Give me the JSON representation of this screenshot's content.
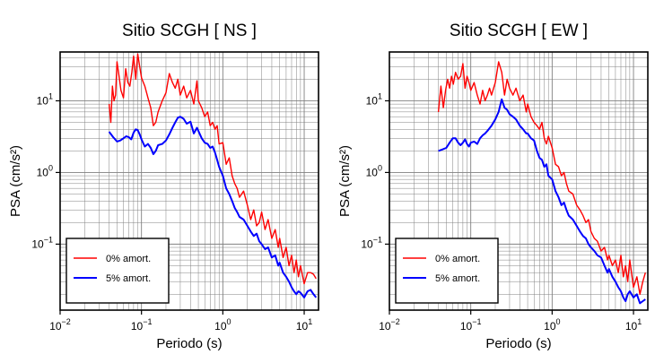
{
  "colors": {
    "series_0": "#ff0000",
    "series_5": "#0000ff",
    "grid": "#808080",
    "frame": "#000000"
  },
  "chart_data": [
    {
      "type": "line",
      "title": "Sitio SCGH [ NS ]",
      "xlabel": "Periodo (s)",
      "ylabel": "PSA (cm/s²)",
      "xscale": "log",
      "yscale": "log",
      "xlim": [
        0.01,
        15
      ],
      "ylim": [
        0.012,
        48
      ],
      "x_ticks": [
        {
          "v": 0.01,
          "b": "10",
          "e": "−2"
        },
        {
          "v": 0.1,
          "b": "10",
          "e": "−1"
        },
        {
          "v": 1,
          "b": "10",
          "e": "0"
        },
        {
          "v": 10,
          "b": "10",
          "e": "1"
        }
      ],
      "y_ticks": [
        {
          "v": 0.1,
          "b": "10",
          "e": "−1"
        },
        {
          "v": 1,
          "b": "10",
          "e": "0"
        },
        {
          "v": 10,
          "b": "10",
          "e": "1"
        }
      ],
      "grid": true,
      "legend_position": "bottom-left",
      "series": [
        {
          "name": "0% amort.",
          "color": "#ff0000",
          "x": [
            0.04,
            0.042,
            0.044,
            0.046,
            0.048,
            0.05,
            0.053,
            0.056,
            0.06,
            0.064,
            0.068,
            0.072,
            0.076,
            0.08,
            0.085,
            0.09,
            0.095,
            0.1,
            0.11,
            0.12,
            0.13,
            0.14,
            0.15,
            0.16,
            0.18,
            0.2,
            0.22,
            0.24,
            0.26,
            0.28,
            0.3,
            0.33,
            0.36,
            0.4,
            0.44,
            0.48,
            0.5,
            0.55,
            0.6,
            0.65,
            0.7,
            0.75,
            0.8,
            0.85,
            0.9,
            1.0,
            1.1,
            1.2,
            1.3,
            1.4,
            1.5,
            1.6,
            1.8,
            2.0,
            2.2,
            2.4,
            2.6,
            2.8,
            3.0,
            3.3,
            3.6,
            4.0,
            4.4,
            4.8,
            5.0,
            5.5,
            6.0,
            6.5,
            7.0,
            7.5,
            8.0,
            8.5,
            9.0,
            10,
            11,
            12,
            13,
            14
          ],
          "values": [
            9,
            5,
            16,
            10,
            12,
            35,
            22,
            14,
            11,
            28,
            18,
            16,
            25,
            42,
            20,
            45,
            30,
            21,
            16,
            11,
            8,
            4.5,
            5,
            7,
            10,
            13,
            24,
            18,
            15,
            20,
            12,
            16,
            11,
            14,
            9,
            19,
            10,
            8,
            6,
            7,
            4.5,
            5,
            4,
            4.5,
            2.5,
            2.6,
            1.3,
            1.6,
            0.9,
            0.7,
            0.6,
            0.45,
            0.55,
            0.35,
            0.22,
            0.3,
            0.18,
            0.2,
            0.28,
            0.16,
            0.22,
            0.12,
            0.16,
            0.09,
            0.12,
            0.065,
            0.09,
            0.05,
            0.07,
            0.04,
            0.06,
            0.035,
            0.05,
            0.028,
            0.04,
            0.04,
            0.038,
            0.033
          ]
        },
        {
          "name": "5% amort.",
          "color": "#0000ff",
          "x": [
            0.04,
            0.045,
            0.05,
            0.055,
            0.06,
            0.065,
            0.07,
            0.075,
            0.08,
            0.085,
            0.09,
            0.095,
            0.1,
            0.11,
            0.12,
            0.13,
            0.14,
            0.15,
            0.16,
            0.18,
            0.2,
            0.22,
            0.24,
            0.26,
            0.28,
            0.3,
            0.33,
            0.36,
            0.4,
            0.44,
            0.48,
            0.5,
            0.55,
            0.6,
            0.65,
            0.7,
            0.75,
            0.8,
            0.85,
            0.9,
            1.0,
            1.1,
            1.2,
            1.3,
            1.4,
            1.5,
            1.6,
            1.8,
            2.0,
            2.2,
            2.4,
            2.6,
            2.8,
            3.0,
            3.3,
            3.6,
            4.0,
            4.4,
            4.8,
            5.0,
            5.5,
            6.0,
            6.5,
            7.0,
            7.5,
            8.0,
            8.5,
            9.0,
            10,
            11,
            12,
            13,
            14
          ],
          "values": [
            3.7,
            3.1,
            2.7,
            2.8,
            3.0,
            3.2,
            3.1,
            2.9,
            3.6,
            4.0,
            3.9,
            3.4,
            2.9,
            2.3,
            2.5,
            2.2,
            1.8,
            2.0,
            2.4,
            2.5,
            2.8,
            3.4,
            4.2,
            5.0,
            5.8,
            6.0,
            5.6,
            4.8,
            5.1,
            3.5,
            4.2,
            3.8,
            3.0,
            2.6,
            2.5,
            2.2,
            2.3,
            1.9,
            1.5,
            1.2,
            0.9,
            0.6,
            0.5,
            0.4,
            0.32,
            0.28,
            0.24,
            0.22,
            0.18,
            0.15,
            0.13,
            0.14,
            0.11,
            0.1,
            0.085,
            0.09,
            0.065,
            0.07,
            0.05,
            0.055,
            0.04,
            0.035,
            0.03,
            0.025,
            0.022,
            0.02,
            0.022,
            0.021,
            0.018,
            0.022,
            0.023,
            0.02,
            0.018
          ]
        }
      ]
    },
    {
      "type": "line",
      "title": "Sitio SCGH [ EW ]",
      "xlabel": "Periodo (s)",
      "ylabel": "PSA (cm/s²)",
      "xscale": "log",
      "yscale": "log",
      "xlim": [
        0.01,
        15
      ],
      "ylim": [
        0.012,
        48
      ],
      "x_ticks": [
        {
          "v": 0.01,
          "b": "10",
          "e": "−2"
        },
        {
          "v": 0.1,
          "b": "10",
          "e": "−1"
        },
        {
          "v": 1,
          "b": "10",
          "e": "0"
        },
        {
          "v": 10,
          "b": "10",
          "e": "1"
        }
      ],
      "y_ticks": [
        {
          "v": 0.1,
          "b": "10",
          "e": "−1"
        },
        {
          "v": 1,
          "b": "10",
          "e": "0"
        },
        {
          "v": 10,
          "b": "10",
          "e": "1"
        }
      ],
      "grid": true,
      "legend_position": "bottom-left",
      "series": [
        {
          "name": "0% amort.",
          "color": "#ff0000",
          "x": [
            0.04,
            0.043,
            0.046,
            0.049,
            0.052,
            0.055,
            0.058,
            0.061,
            0.065,
            0.07,
            0.075,
            0.08,
            0.085,
            0.09,
            0.095,
            0.1,
            0.11,
            0.12,
            0.13,
            0.14,
            0.15,
            0.16,
            0.17,
            0.18,
            0.2,
            0.22,
            0.24,
            0.26,
            0.28,
            0.3,
            0.33,
            0.36,
            0.4,
            0.44,
            0.48,
            0.5,
            0.55,
            0.6,
            0.65,
            0.7,
            0.75,
            0.8,
            0.85,
            0.9,
            1.0,
            1.1,
            1.2,
            1.3,
            1.4,
            1.5,
            1.6,
            1.8,
            2.0,
            2.2,
            2.4,
            2.6,
            2.8,
            3.0,
            3.3,
            3.6,
            4.0,
            4.4,
            4.8,
            5.0,
            5.5,
            6.0,
            6.5,
            7.0,
            7.5,
            8.0,
            8.5,
            9.0,
            10,
            11,
            12,
            13,
            14
          ],
          "values": [
            7,
            16,
            8,
            14,
            20,
            15,
            22,
            17,
            25,
            20,
            22,
            33,
            15,
            22,
            18,
            14,
            18,
            12,
            9,
            14,
            10,
            12,
            15,
            12,
            18,
            35,
            25,
            12,
            20,
            15,
            12,
            15,
            10,
            12,
            7,
            9,
            6,
            5,
            4.5,
            4,
            5,
            3,
            2.5,
            3.2,
            2.2,
            1.3,
            1.2,
            0.9,
            1.0,
            0.7,
            0.55,
            0.5,
            0.35,
            0.3,
            0.25,
            0.2,
            0.22,
            0.15,
            0.12,
            0.11,
            0.08,
            0.09,
            0.06,
            0.07,
            0.05,
            0.06,
            0.04,
            0.07,
            0.035,
            0.05,
            0.03,
            0.06,
            0.025,
            0.035,
            0.02,
            0.03,
            0.04
          ]
        },
        {
          "name": "5% amort.",
          "color": "#0000ff",
          "x": [
            0.04,
            0.045,
            0.05,
            0.055,
            0.06,
            0.065,
            0.07,
            0.075,
            0.08,
            0.085,
            0.09,
            0.095,
            0.1,
            0.11,
            0.12,
            0.13,
            0.14,
            0.15,
            0.16,
            0.18,
            0.2,
            0.22,
            0.24,
            0.26,
            0.28,
            0.3,
            0.33,
            0.36,
            0.4,
            0.44,
            0.48,
            0.5,
            0.55,
            0.6,
            0.65,
            0.7,
            0.75,
            0.8,
            0.85,
            0.9,
            1.0,
            1.1,
            1.2,
            1.3,
            1.4,
            1.5,
            1.6,
            1.8,
            2.0,
            2.2,
            2.4,
            2.6,
            2.8,
            3.0,
            3.3,
            3.6,
            4.0,
            4.4,
            4.8,
            5.0,
            5.5,
            6.0,
            6.5,
            7.0,
            7.5,
            8.0,
            8.5,
            9.0,
            10,
            11,
            12,
            13,
            14
          ],
          "values": [
            2.0,
            2.1,
            2.2,
            2.6,
            3.0,
            3.0,
            2.6,
            2.4,
            2.6,
            2.9,
            2.5,
            2.3,
            2.6,
            2.7,
            2.5,
            3.0,
            3.3,
            3.5,
            3.8,
            4.5,
            5.5,
            7.0,
            10.5,
            8.0,
            7.5,
            6.5,
            6.0,
            5.5,
            4.5,
            4.0,
            3.5,
            3.5,
            3.0,
            2.8,
            2.0,
            1.6,
            1.5,
            1.2,
            1.3,
            0.9,
            0.8,
            0.55,
            0.45,
            0.35,
            0.38,
            0.3,
            0.25,
            0.22,
            0.18,
            0.15,
            0.13,
            0.12,
            0.1,
            0.09,
            0.08,
            0.07,
            0.065,
            0.05,
            0.04,
            0.045,
            0.035,
            0.03,
            0.025,
            0.022,
            0.018,
            0.016,
            0.02,
            0.022,
            0.018,
            0.02,
            0.015,
            0.016,
            0.017
          ]
        }
      ]
    }
  ]
}
